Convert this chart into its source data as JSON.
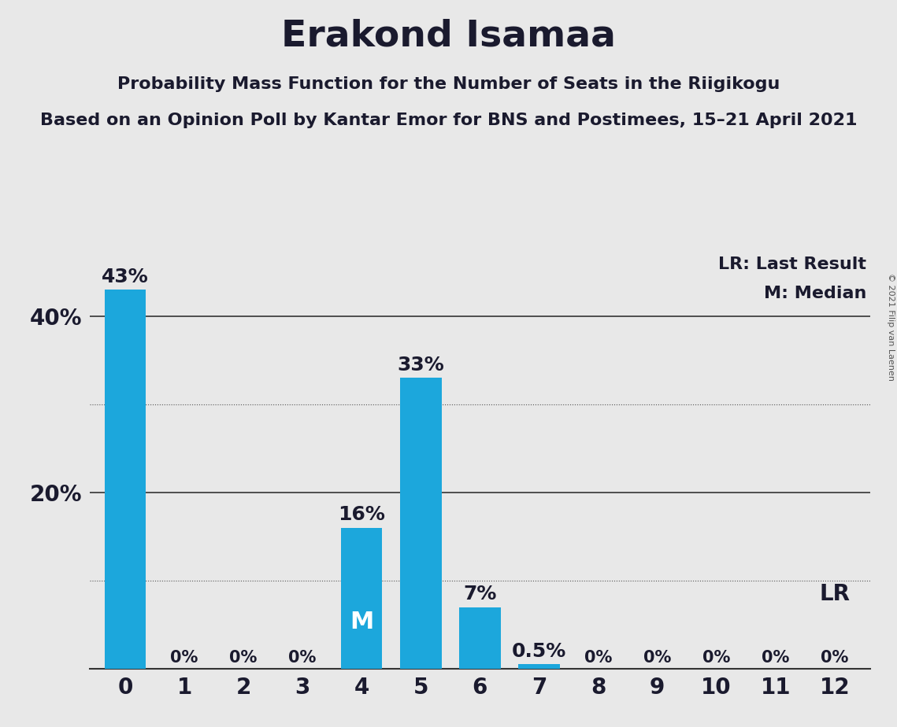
{
  "title": "Erakond Isamaa",
  "subtitle1": "Probability Mass Function for the Number of Seats in the Riigikogu",
  "subtitle2": "Based on an Opinion Poll by Kantar Emor for BNS and Postimees, 15–21 April 2021",
  "copyright": "© 2021 Filip van Laenen",
  "seats": [
    0,
    1,
    2,
    3,
    4,
    5,
    6,
    7,
    8,
    9,
    10,
    11,
    12
  ],
  "probabilities": [
    0.43,
    0.0,
    0.0,
    0.0,
    0.16,
    0.33,
    0.07,
    0.005,
    0.0,
    0.0,
    0.0,
    0.0,
    0.0
  ],
  "bar_color": "#1CA7DC",
  "background_color": "#E8E8E8",
  "median": 4,
  "last_result": 12,
  "yticks": [
    0.2,
    0.4
  ],
  "ytick_labels": [
    "20%",
    "40%"
  ],
  "hlines_solid": [
    0.2,
    0.4
  ],
  "hlines_dotted": [
    0.1,
    0.3
  ],
  "ylim": [
    0,
    0.47
  ],
  "legend_lr_label": "LR: Last Result",
  "legend_m_label": "M: Median",
  "lr_label": "LR",
  "bar_labels": [
    "43%",
    "0%",
    "0%",
    "0%",
    "16%",
    "33%",
    "7%",
    "0.5%",
    "0%",
    "0%",
    "0%",
    "0%",
    "0%"
  ],
  "bar_label_fontsize_large": 18,
  "bar_label_fontsize_small": 15,
  "title_fontsize": 34,
  "subtitle_fontsize": 16,
  "legend_fontsize": 16,
  "ytick_fontsize": 20,
  "xtick_fontsize": 20,
  "lr_fontsize": 20,
  "m_fontsize": 22
}
